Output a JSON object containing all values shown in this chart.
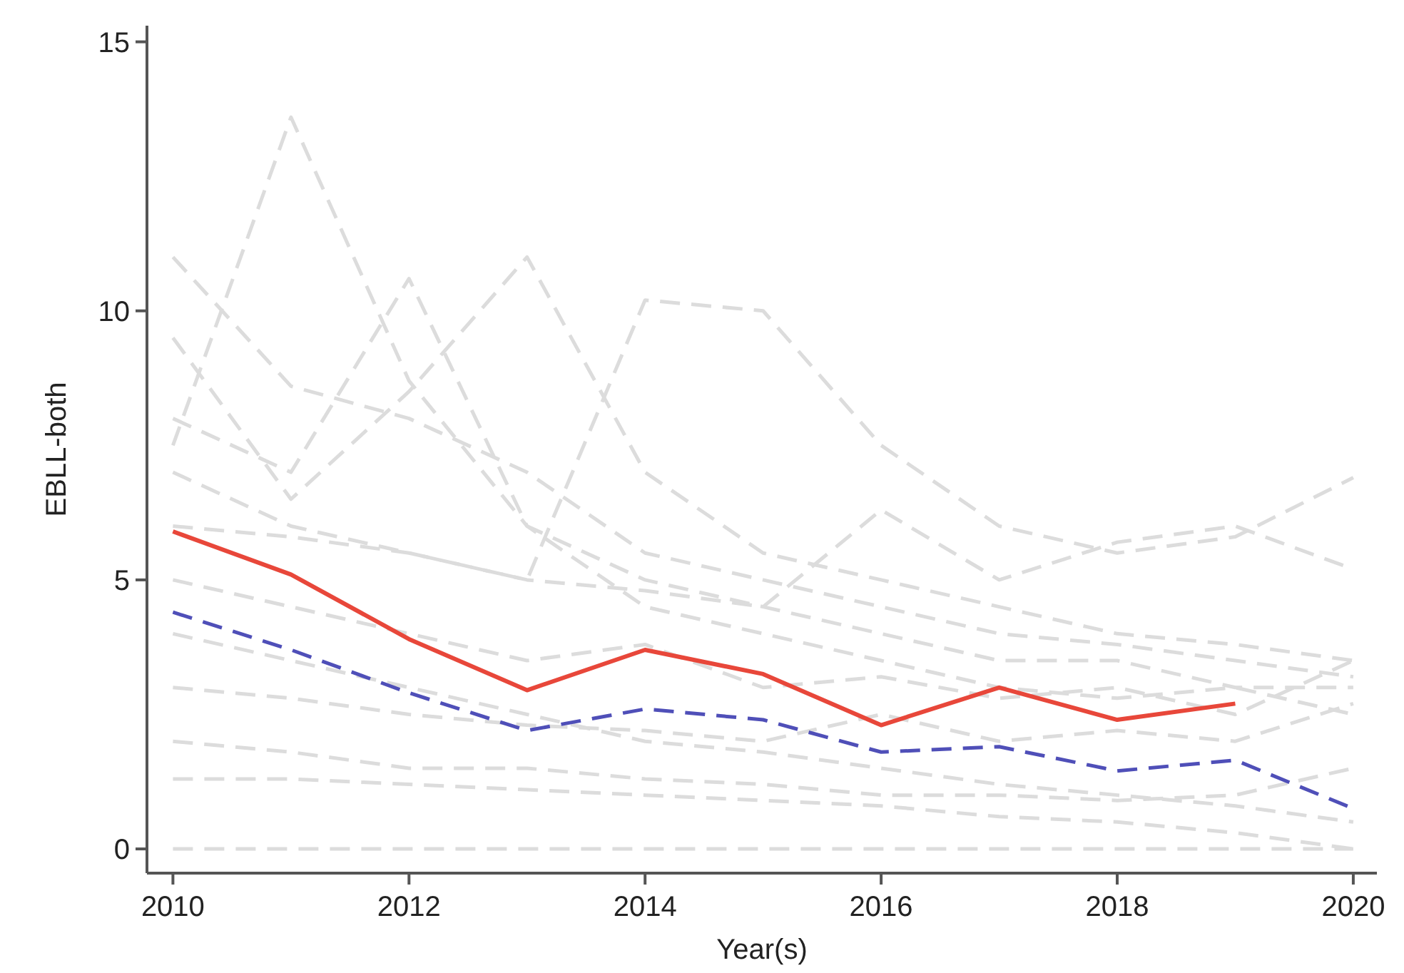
{
  "chart_data": {
    "type": "line",
    "xlabel": "Year(s)",
    "ylabel": "EBLL-both",
    "x": [
      2010,
      2011,
      2012,
      2013,
      2014,
      2015,
      2016,
      2017,
      2018,
      2019,
      2020
    ],
    "xlim": [
      2009.78,
      2020.2
    ],
    "xticks": [
      2010,
      2012,
      2014,
      2016,
      2018,
      2020
    ],
    "ylim": [
      -0.45,
      15.3
    ],
    "yticks": [
      0,
      5,
      10,
      15
    ],
    "grid": false,
    "marker": "none",
    "series": [
      {
        "color": "#dcdcdc",
        "line_style": "dashed",
        "values": [
          7.5,
          13.6,
          8.7,
          6.0,
          4.5,
          4.0,
          3.5,
          3.0,
          2.8,
          3.0,
          2.5
        ]
      },
      {
        "color": "#dcdcdc",
        "line_style": "dashed",
        "values": [
          11.0,
          8.6,
          8.0,
          7.0,
          5.5,
          5.0,
          4.5,
          4.0,
          3.8,
          3.5,
          3.2
        ]
      },
      {
        "color": "#dcdcdc",
        "line_style": "dashed",
        "values": [
          8.0,
          7.0,
          10.6,
          6.0,
          5.0,
          4.5,
          4.0,
          3.5,
          3.5,
          3.0,
          3.0
        ]
      },
      {
        "color": "#dcdcdc",
        "line_style": "dashed",
        "values": [
          9.5,
          6.5,
          8.5,
          11.0,
          7.0,
          5.5,
          5.0,
          4.5,
          4.0,
          3.8,
          3.5
        ]
      },
      {
        "color": "#dcdcdc",
        "line_style": "dashed",
        "values": [
          7.0,
          6.0,
          5.5,
          5.0,
          10.2,
          10.0,
          7.5,
          6.0,
          5.5,
          5.8,
          6.9
        ]
      },
      {
        "color": "#dcdcdc",
        "line_style": "dashed",
        "values": [
          4.0,
          3.5,
          3.0,
          2.5,
          2.0,
          1.8,
          1.5,
          1.2,
          1.0,
          0.8,
          0.5
        ]
      },
      {
        "color": "#dcdcdc",
        "line_style": "dashed",
        "values": [
          1.3,
          1.3,
          1.2,
          1.1,
          1.0,
          0.9,
          0.8,
          0.6,
          0.5,
          0.3,
          0.0
        ]
      },
      {
        "color": "#dcdcdc",
        "line_style": "dashed",
        "values": [
          0.0,
          0.0,
          0.0,
          0.0,
          0.0,
          0.0,
          0.0,
          0.0,
          0.0,
          0.0,
          0.0
        ]
      },
      {
        "color": "#dcdcdc",
        "line_style": "dashed",
        "values": [
          6.0,
          5.8,
          5.5,
          5.0,
          4.8,
          4.5,
          6.3,
          5.0,
          5.7,
          6.0,
          5.2
        ]
      },
      {
        "color": "#dcdcdc",
        "line_style": "dashed",
        "values": [
          3.0,
          2.8,
          2.5,
          2.3,
          2.2,
          2.0,
          2.5,
          2.0,
          2.2,
          2.0,
          2.7
        ]
      },
      {
        "color": "#dcdcdc",
        "line_style": "dashed",
        "values": [
          5.0,
          4.5,
          4.0,
          3.5,
          3.8,
          3.0,
          3.2,
          2.8,
          3.0,
          2.5,
          3.5
        ]
      },
      {
        "color": "#dcdcdc",
        "line_style": "dashed",
        "values": [
          2.0,
          1.8,
          1.5,
          1.5,
          1.3,
          1.2,
          1.0,
          1.0,
          0.9,
          1.0,
          1.5
        ]
      },
      {
        "color": "#e8473a",
        "line_style": "solid",
        "values": [
          5.9,
          5.1,
          3.9,
          2.95,
          3.7,
          3.25,
          2.3,
          3.0,
          2.4,
          2.7,
          null
        ]
      },
      {
        "color": "#4f4fb8",
        "line_style": "dashed",
        "values": [
          4.4,
          3.7,
          2.9,
          2.2,
          2.6,
          2.4,
          1.8,
          1.9,
          1.45,
          1.65,
          0.75
        ]
      }
    ]
  }
}
